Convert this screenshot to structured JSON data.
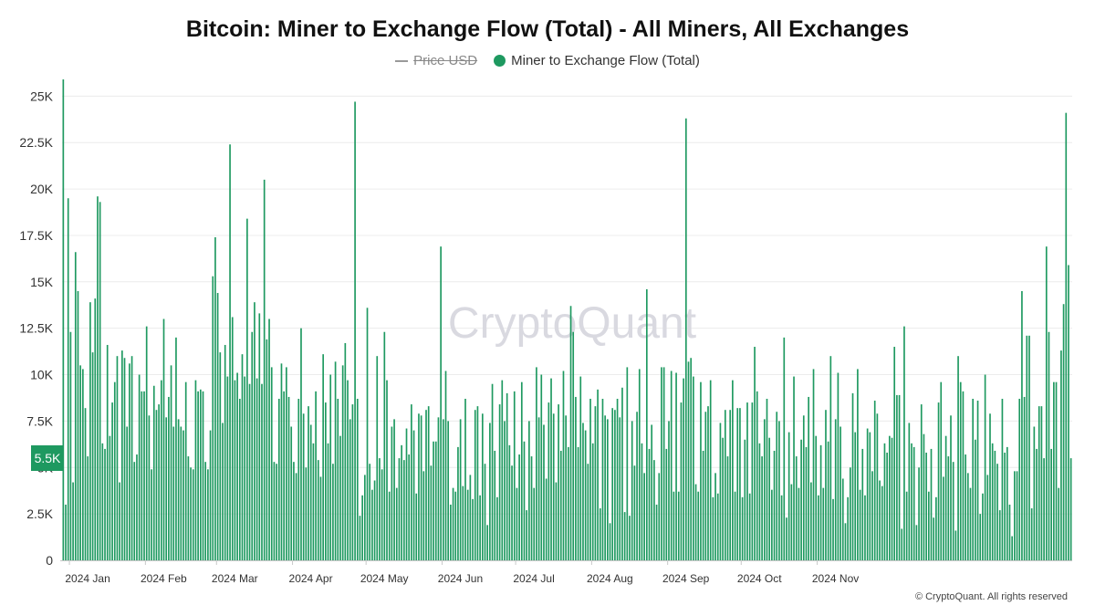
{
  "chart_data": {
    "type": "bar",
    "title": "Bitcoin: Miner to Exchange Flow (Total) - All Miners, All Exchanges",
    "legend": [
      {
        "name": "Price USD",
        "enabled": false,
        "marker": "line"
      },
      {
        "name": "Miner to Exchange Flow (Total)",
        "enabled": true,
        "marker": "dot"
      }
    ],
    "series_color": "#1e9960",
    "ylim": [
      0,
      26000
    ],
    "y_ticks": [
      0,
      2500,
      5000,
      7500,
      10000,
      12500,
      15000,
      17500,
      20000,
      22500,
      25000
    ],
    "y_tick_labels": [
      "0",
      "2.5K",
      "5K",
      "7.5K",
      "10K",
      "12.5K",
      "15K",
      "17.5K",
      "20K",
      "22.5K",
      "25K"
    ],
    "x_tick_labels": [
      "2024 Jan",
      "2024 Feb",
      "2024 Mar",
      "2024 Apr",
      "2024 May",
      "2024 Jun",
      "2024 Jul",
      "2024 Aug",
      "2024 Sep",
      "2024 Oct",
      "2024 Nov"
    ],
    "current_value_label": "5.5K",
    "start_date": "2023-12-29",
    "values": [
      25900,
      3000,
      19500,
      12300,
      4200,
      16600,
      14500,
      10500,
      10300,
      8200,
      5600,
      13900,
      11200,
      14100,
      19600,
      19300,
      6300,
      6000,
      11600,
      6700,
      8500,
      9600,
      11000,
      4200,
      11300,
      10900,
      7200,
      10600,
      11000,
      5300,
      5700,
      10000,
      9100,
      9100,
      12600,
      7800,
      4900,
      9400,
      8100,
      8400,
      9700,
      13000,
      7700,
      8800,
      10500,
      7200,
      12000,
      7600,
      7200,
      7000,
      9600,
      5600,
      5000,
      4900,
      9700,
      9100,
      9200,
      9100,
      5300,
      4900,
      7000,
      15300,
      17400,
      14400,
      11200,
      7400,
      11600,
      9900,
      22400,
      13100,
      9700,
      10100,
      8700,
      11100,
      9900,
      18400,
      9500,
      12300,
      13900,
      9800,
      13300,
      9500,
      20500,
      11900,
      13000,
      10400,
      5300,
      5200,
      8700,
      10600,
      9100,
      10400,
      8800,
      7200,
      5300,
      4700,
      8700,
      12500,
      7900,
      5000,
      8300,
      7300,
      6300,
      9100,
      5400,
      4500,
      11100,
      8500,
      6300,
      10000,
      5200,
      10700,
      8700,
      6700,
      10500,
      11700,
      9700,
      7600,
      8400,
      24700,
      8700,
      2400,
      3500,
      4600,
      13600,
      5200,
      3800,
      4300,
      11000,
      5500,
      4900,
      12300,
      9700,
      3700,
      7200,
      7600,
      3900,
      5500,
      6200,
      5400,
      7100,
      5700,
      8400,
      7000,
      3600,
      7900,
      7800,
      4800,
      8100,
      8300,
      5100,
      6400,
      6400,
      7700,
      16900,
      7600,
      10200,
      7500,
      3000,
      3900,
      3700,
      6100,
      7600,
      4000,
      8700,
      3800,
      4600,
      3300,
      8100,
      8300,
      3500,
      7900,
      5200,
      1900,
      7400,
      9500,
      5900,
      3400,
      8400,
      9700,
      7500,
      9000,
      6200,
      5100,
      9100,
      3900,
      5700,
      9600,
      6400,
      2700,
      7500,
      5600,
      3900,
      10400,
      7700,
      10000,
      7300,
      4400,
      8500,
      9800,
      7900,
      4200,
      8400,
      5900,
      10200,
      7800,
      6100,
      13700,
      12300,
      8800,
      6100,
      9900,
      7400,
      7000,
      5200,
      8700,
      6300,
      8300,
      9200,
      2800,
      8700,
      7800,
      7600,
      2000,
      8200,
      8100,
      8700,
      7700,
      9300,
      2600,
      10400,
      2400,
      7500,
      5100,
      8000,
      10300,
      6300,
      4700,
      14600,
      6000,
      7300,
      5400,
      3000,
      4700,
      10400,
      10400,
      6000,
      7500,
      10200,
      3700,
      10100,
      3700,
      8500,
      9800,
      23800,
      10700,
      10900,
      9900,
      4100,
      3700,
      9600,
      5900,
      8000,
      8300,
      9700,
      3400,
      4700,
      3600,
      7400,
      6600,
      8100,
      5600,
      8100,
      9700,
      3700,
      8200,
      8200,
      3400,
      6500,
      8500,
      3600,
      8500,
      11500,
      9100,
      6300,
      5600,
      7600,
      8700,
      6600,
      3800,
      5900,
      8000,
      7500,
      3500,
      12000,
      2300,
      6900,
      4100,
      9900,
      5600,
      3900,
      6500,
      7800,
      6100,
      8800,
      4200,
      10300,
      6700,
      3500,
      6200,
      3900,
      8100,
      6400,
      11000,
      3300,
      7600,
      10100,
      7200,
      4400,
      2000,
      3400,
      5000,
      9000,
      6900,
      10300,
      3800,
      6000,
      3500,
      7100,
      6900,
      4800,
      8600,
      7900,
      4300,
      4000,
      6300,
      5800,
      6700,
      6600,
      11500,
      8900,
      8900,
      1700,
      12600,
      3700,
      7400,
      6300,
      6100,
      1900,
      5000,
      8400,
      6800,
      5800,
      3700,
      6000,
      2300,
      3400,
      8500,
      9600,
      4500,
      6700,
      5600,
      7800,
      5300,
      1600,
      11000,
      9600,
      9100,
      5700,
      4700,
      3900,
      8700,
      6500,
      8600,
      2500,
      3600,
      10000,
      4600,
      7900,
      6300,
      5900,
      5200,
      2700,
      8700,
      5800,
      6100,
      3000,
      1300,
      4800,
      4800,
      8700,
      14500,
      8800,
      12100,
      12100,
      2800,
      7200,
      6000,
      8300,
      8300,
      5500,
      16900,
      12300,
      6000,
      9600,
      9600,
      3900,
      11300,
      13800,
      24100,
      15900,
      5500
    ]
  },
  "watermark": "CryptoQuant",
  "copyright": "© CryptoQuant. All rights reserved"
}
